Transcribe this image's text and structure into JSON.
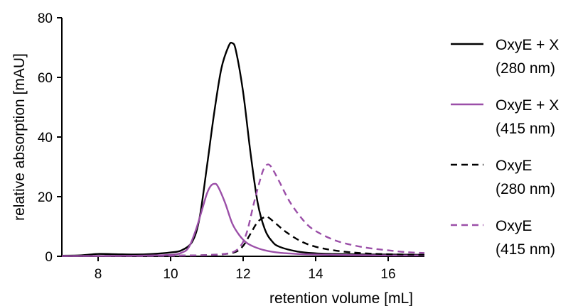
{
  "chart_data": {
    "type": "line",
    "title": "",
    "xlabel": "retention volume [mL]",
    "ylabel": "relative absorption [mAU]",
    "xlim": [
      7,
      17
    ],
    "ylim": [
      0,
      80
    ],
    "x_ticks": [
      8,
      10,
      12,
      14,
      16
    ],
    "y_ticks": [
      0,
      20,
      40,
      60,
      80
    ],
    "grid": false,
    "legend_position": "right",
    "series": [
      {
        "name": "OxyE + X (280 nm)",
        "legend_line1": "OxyE + X",
        "legend_line2": "(280 nm)",
        "color": "#000000",
        "dash": "solid",
        "x": [
          7.0,
          7.5,
          7.8,
          8.0,
          8.5,
          9.0,
          9.5,
          10.0,
          10.3,
          10.6,
          10.8,
          11.0,
          11.2,
          11.4,
          11.6,
          11.7,
          11.8,
          12.0,
          12.2,
          12.4,
          12.6,
          12.8,
          13.0,
          13.5,
          14.0,
          14.5,
          15.0,
          15.5,
          16.0,
          17.0
        ],
        "y": [
          0.2,
          0.3,
          0.6,
          0.8,
          0.7,
          0.6,
          0.8,
          1.3,
          2.0,
          5.0,
          13.0,
          30.0,
          48.0,
          63.0,
          70.5,
          71.5,
          69.0,
          55.0,
          35.0,
          18.0,
          9.0,
          5.0,
          3.2,
          1.6,
          1.0,
          0.8,
          0.7,
          0.6,
          0.6,
          0.5
        ]
      },
      {
        "name": "OxyE + X (415 nm)",
        "legend_line1": "OxyE + X",
        "legend_line2": "(415 nm)",
        "color": "#9b4fa8",
        "dash": "solid",
        "x": [
          7.0,
          8.0,
          9.0,
          10.0,
          10.3,
          10.5,
          10.7,
          10.9,
          11.0,
          11.1,
          11.2,
          11.3,
          11.5,
          11.7,
          11.9,
          12.1,
          12.3,
          12.6,
          13.0,
          13.5,
          14.0,
          15.0,
          16.0,
          17.0
        ],
        "y": [
          0.1,
          0.1,
          0.2,
          0.5,
          1.2,
          3.0,
          9.0,
          17.0,
          21.0,
          23.5,
          24.3,
          23.5,
          18.0,
          11.0,
          7.0,
          4.5,
          3.2,
          2.0,
          1.2,
          0.8,
          0.6,
          0.4,
          0.3,
          0.3
        ]
      },
      {
        "name": "OxyE (280 nm)",
        "legend_line1": "OxyE",
        "legend_line2": "(280 nm)",
        "color": "#000000",
        "dash": "dashed",
        "x": [
          7.0,
          8.0,
          9.0,
          10.0,
          11.0,
          11.5,
          11.8,
          12.0,
          12.2,
          12.4,
          12.6,
          12.7,
          12.9,
          13.2,
          13.6,
          14.0,
          14.5,
          15.0,
          15.5,
          16.0,
          17.0
        ],
        "y": [
          0.1,
          0.1,
          0.1,
          0.2,
          0.4,
          0.8,
          1.5,
          3.5,
          7.5,
          11.5,
          13.2,
          13.0,
          11.0,
          8.0,
          5.0,
          3.2,
          2.0,
          1.3,
          0.9,
          0.7,
          0.5
        ]
      },
      {
        "name": "OxyE (415 nm)",
        "legend_line1": "OxyE",
        "legend_line2": "(415 nm)",
        "color": "#9b4fa8",
        "dash": "dashed",
        "x": [
          7.0,
          8.0,
          9.0,
          10.0,
          11.0,
          11.6,
          11.9,
          12.1,
          12.3,
          12.5,
          12.6,
          12.7,
          12.8,
          13.0,
          13.3,
          13.7,
          14.0,
          14.5,
          15.0,
          15.5,
          16.0,
          16.5,
          17.0
        ],
        "y": [
          0.1,
          0.1,
          0.1,
          0.2,
          0.4,
          1.0,
          3.0,
          8.0,
          18.0,
          27.0,
          30.0,
          30.8,
          29.5,
          25.0,
          18.0,
          11.5,
          8.5,
          5.5,
          3.8,
          2.7,
          2.0,
          1.4,
          1.1
        ]
      }
    ]
  }
}
